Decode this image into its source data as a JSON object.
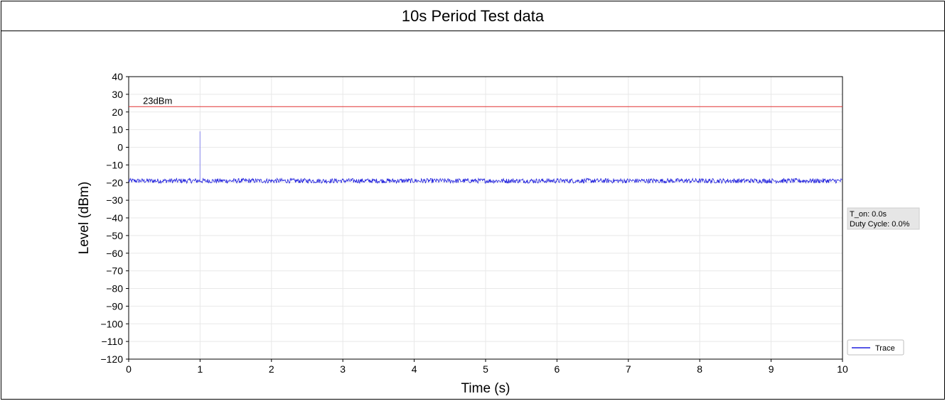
{
  "header": {
    "title": "10s Period Test data"
  },
  "chart_data": {
    "type": "line",
    "xlabel": "Time (s)",
    "ylabel": "Level (dBm)",
    "xlim": [
      0,
      10
    ],
    "ylim": [
      -120,
      40
    ],
    "xticks": [
      0,
      1,
      2,
      3,
      4,
      5,
      6,
      7,
      8,
      9,
      10
    ],
    "yticks": [
      40,
      30,
      20,
      10,
      0,
      -10,
      -20,
      -30,
      -40,
      -50,
      -60,
      -70,
      -80,
      -90,
      -100,
      -110,
      -120
    ],
    "grid": true,
    "legend_position": "lower-right",
    "series": [
      {
        "name": "Trace",
        "color": "#1f1fdd",
        "baseline_dbm": -19,
        "noise_range_dbm": [
          -20.5,
          -17.5
        ],
        "spike": {
          "x": 1.0,
          "y": 9
        }
      }
    ],
    "reference_line": {
      "y": 23,
      "label": "23dBm",
      "color": "#e03030"
    },
    "info_box": {
      "line1": "T_on: 0.0s",
      "line2": "Duty Cycle: 0.0%"
    }
  }
}
